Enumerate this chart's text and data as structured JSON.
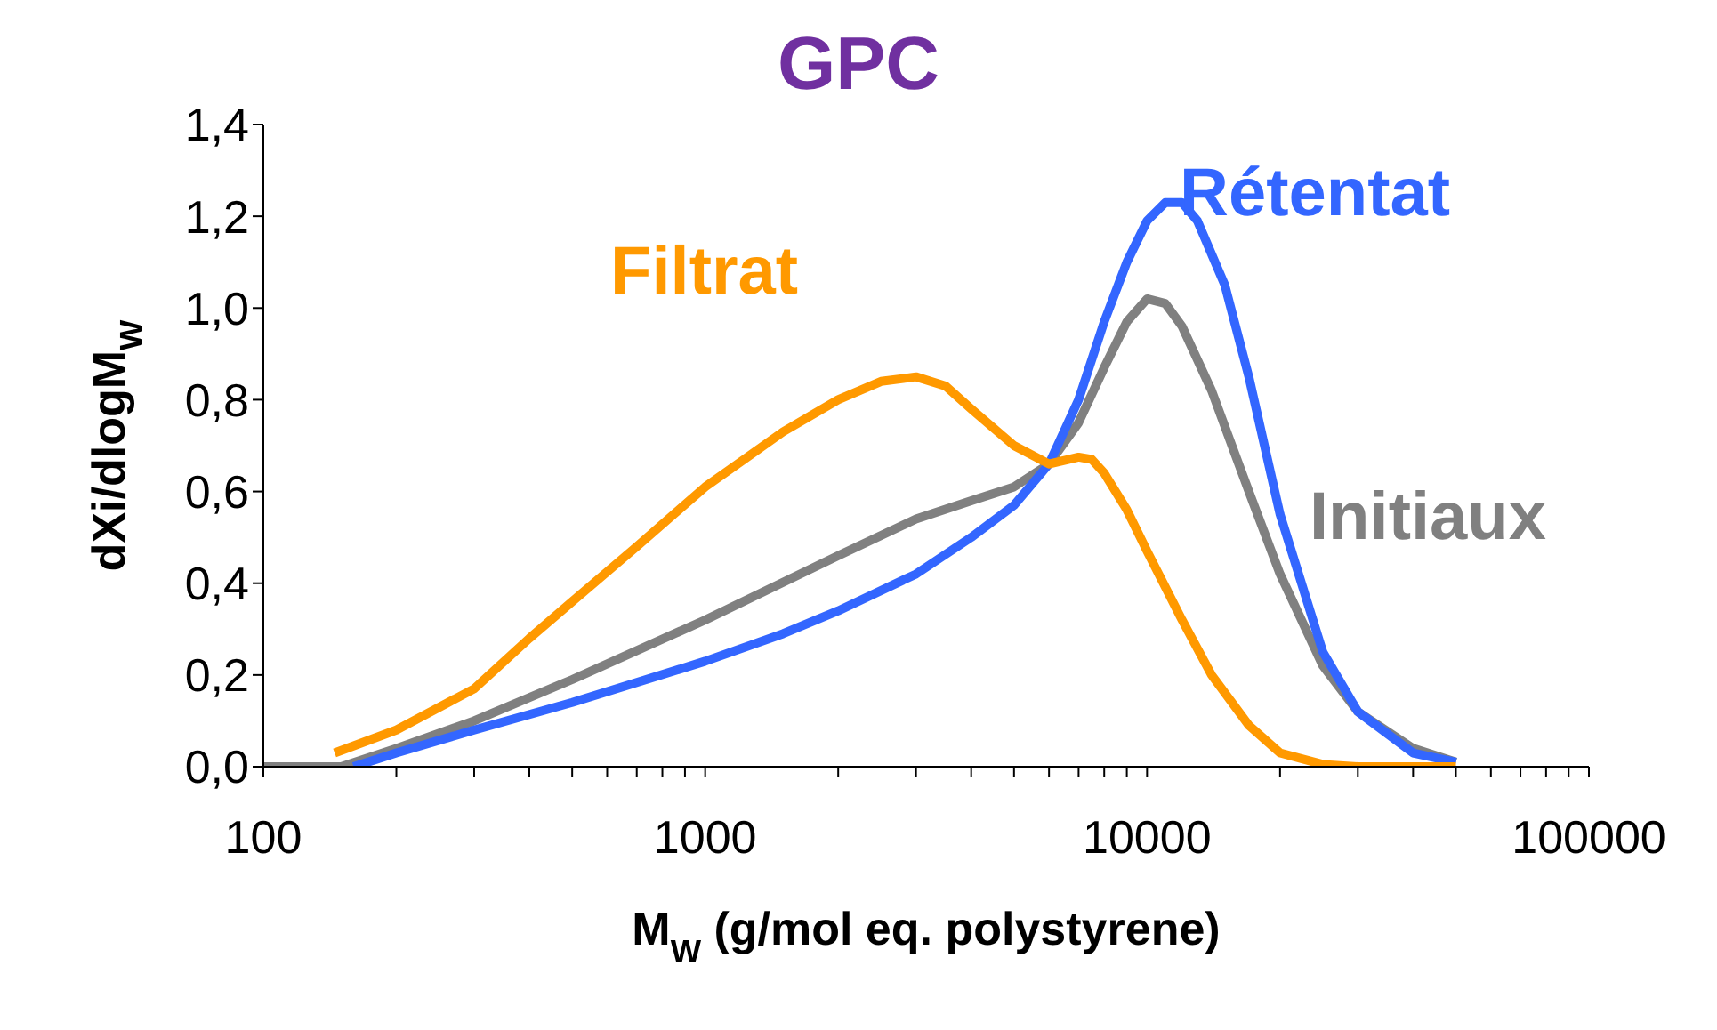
{
  "chart_data": {
    "type": "line",
    "title": "GPC",
    "xlabel": "M$_{W}$ (g/mol eq. polystyrene)",
    "ylabel": "dXi/dlogM$_{W}$",
    "log": "x",
    "grid": false,
    "legend": false,
    "marker": "none",
    "line_style": "solid",
    "xlim": [
      100,
      100000
    ],
    "xticks": [
      100,
      {
        "value": 200,
        "label": null
      },
      {
        "value": 300,
        "label": null
      },
      {
        "value": 400,
        "label": null
      },
      {
        "value": 500,
        "label": null
      },
      {
        "value": 600,
        "label": null
      },
      {
        "value": 700,
        "label": null
      },
      {
        "value": 800,
        "label": null
      },
      {
        "value": 900,
        "label": null
      },
      1000,
      {
        "value": 2000,
        "label": null
      },
      {
        "value": 3000,
        "label": null
      },
      {
        "value": 4000,
        "label": null
      },
      {
        "value": 5000,
        "label": null
      },
      {
        "value": 6000,
        "label": null
      },
      {
        "value": 7000,
        "label": null
      },
      {
        "value": 8000,
        "label": null
      },
      {
        "value": 9000,
        "label": null
      },
      10000,
      {
        "value": 20000,
        "label": null
      },
      {
        "value": 30000,
        "label": null
      },
      {
        "value": 40000,
        "label": null
      },
      {
        "value": 50000,
        "label": null
      },
      {
        "value": 60000,
        "label": null
      },
      {
        "value": 70000,
        "label": null
      },
      {
        "value": 80000,
        "label": null
      },
      {
        "value": 90000,
        "label": null
      },
      100000
    ],
    "ylim": [
      0,
      1.4
    ],
    "yticks": [
      {
        "value": 0,
        "label": "0,0"
      },
      {
        "value": 0.2,
        "label": "0,2"
      },
      {
        "value": 0.4,
        "label": "0,4"
      },
      {
        "value": 0.6,
        "label": "0,6"
      },
      {
        "value": 0.8,
        "label": "0,8"
      },
      {
        "value": 1.0,
        "label": "1,0"
      },
      {
        "value": 1.2,
        "label": "1,2"
      },
      {
        "value": 1.4,
        "label": "1,4"
      }
    ],
    "series": [
      {
        "name": "Initiaux",
        "color": "#808080",
        "x": [
          100,
          150,
          200,
          300,
          500,
          1000,
          2000,
          3000,
          4000,
          5000,
          6000,
          7000,
          8000,
          9000,
          10000,
          11000,
          12000,
          14000,
          17000,
          20000,
          25000,
          30000,
          40000,
          50000
        ],
        "values": [
          0,
          0,
          0.04,
          0.1,
          0.19,
          0.32,
          0.46,
          0.54,
          0.58,
          0.61,
          0.66,
          0.75,
          0.87,
          0.97,
          1.02,
          1.01,
          0.96,
          0.82,
          0.6,
          0.42,
          0.22,
          0.12,
          0.04,
          0.01
        ]
      },
      {
        "name": "Rétentat",
        "color": "#3366ff",
        "x": [
          160,
          200,
          300,
          500,
          1000,
          1500,
          2000,
          3000,
          4000,
          5000,
          6000,
          7000,
          8000,
          9000,
          10000,
          11000,
          12000,
          13000,
          15000,
          17000,
          20000,
          25000,
          30000,
          40000,
          50000
        ],
        "values": [
          0,
          0.03,
          0.08,
          0.14,
          0.23,
          0.29,
          0.34,
          0.42,
          0.5,
          0.57,
          0.66,
          0.8,
          0.97,
          1.1,
          1.19,
          1.23,
          1.23,
          1.19,
          1.05,
          0.85,
          0.55,
          0.25,
          0.12,
          0.03,
          0.01
        ]
      },
      {
        "name": "Filtrat",
        "color": "#ff9900",
        "x": [
          145,
          200,
          300,
          400,
          500,
          700,
          1000,
          1500,
          2000,
          2500,
          3000,
          3500,
          4000,
          5000,
          6000,
          7000,
          7500,
          8000,
          9000,
          10000,
          12000,
          14000,
          17000,
          20000,
          25000,
          30000,
          50000
        ],
        "values": [
          0.03,
          0.08,
          0.17,
          0.28,
          0.36,
          0.48,
          0.61,
          0.73,
          0.8,
          0.84,
          0.85,
          0.83,
          0.78,
          0.7,
          0.66,
          0.675,
          0.67,
          0.64,
          0.56,
          0.47,
          0.32,
          0.2,
          0.09,
          0.03,
          0.005,
          0,
          0
        ]
      }
    ]
  }
}
